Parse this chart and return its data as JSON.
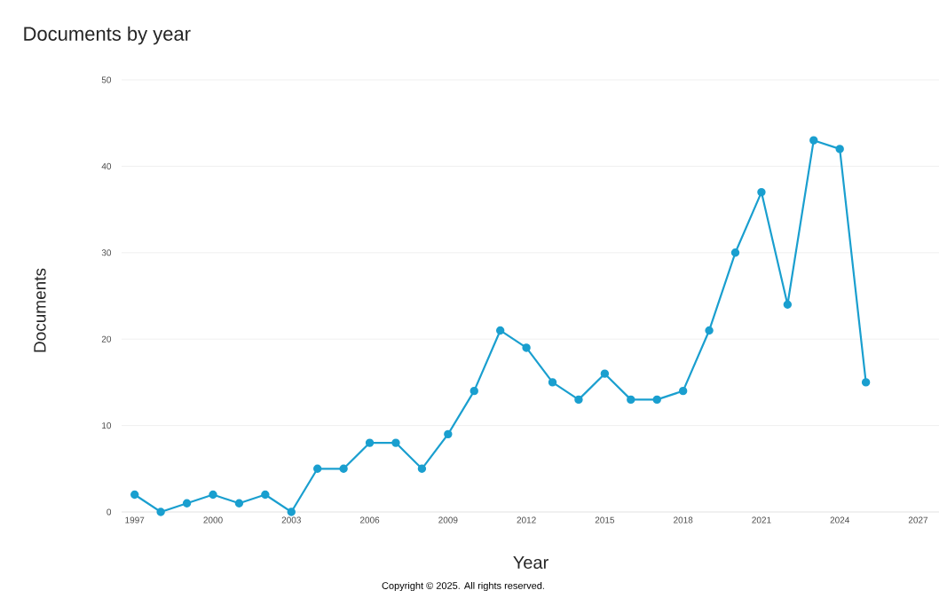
{
  "chart_data": {
    "type": "line",
    "title": "Documents by year",
    "xlabel": "Year",
    "ylabel": "Documents",
    "annotations": [
      "Copyright © 2025. All rights reserved."
    ],
    "x": [
      1997,
      1998,
      1999,
      2000,
      2001,
      2002,
      2003,
      2004,
      2005,
      2006,
      2007,
      2008,
      2009,
      2010,
      2011,
      2012,
      2013,
      2014,
      2015,
      2016,
      2017,
      2018,
      2019,
      2020,
      2021,
      2022,
      2023,
      2024,
      2025
    ],
    "series": [
      {
        "color": "#1a9fcf",
        "values": [
          2,
          0,
          1,
          2,
          1,
          2,
          0,
          5,
          5,
          8,
          8,
          5,
          9,
          14,
          21,
          19,
          15,
          13,
          16,
          13,
          13,
          14,
          21,
          30,
          37,
          24,
          43,
          42,
          15
        ]
      }
    ],
    "xlim": [
      1996.5,
      2027.8
    ],
    "ylim": [
      0,
      50
    ],
    "xticks": [
      1997,
      2000,
      2003,
      2006,
      2009,
      2012,
      2015,
      2018,
      2021,
      2024,
      2027
    ],
    "yticks": [
      0,
      10,
      20,
      30,
      40,
      50
    ],
    "grid": "y",
    "marker": "circle",
    "line_style": "solid"
  }
}
